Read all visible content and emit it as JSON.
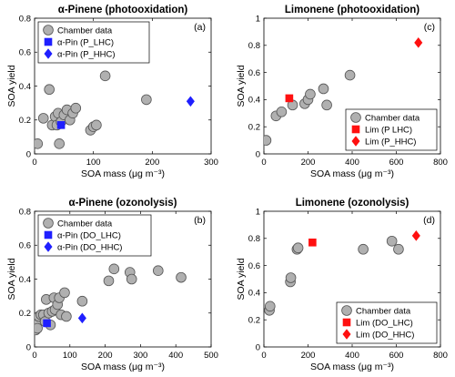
{
  "figure": {
    "symbol_colors": {
      "chamber": "#b0b0b0",
      "model": "#1f1fff",
      "lim_model": "#ff1010"
    }
  },
  "chart_data": [
    {
      "type": "scatter",
      "panel": "(a)",
      "title": "α-Pinene (photooxidation)",
      "xlabel": "SOA mass (μg m⁻³)",
      "ylabel": "SOA yield",
      "xlim": [
        0,
        300
      ],
      "ylim": [
        0,
        0.8
      ],
      "xticks": [
        0,
        100,
        200,
        300
      ],
      "yticks": [
        0,
        0.2,
        0.4,
        0.6,
        0.8
      ],
      "legend_position": "top-left",
      "series": [
        {
          "name": "Chamber data",
          "marker": "circle",
          "color": "#b0b0b0",
          "points": [
            [
              5,
              0.06
            ],
            [
              15,
              0.21
            ],
            [
              25,
              0.38
            ],
            [
              30,
              0.17
            ],
            [
              35,
              0.22
            ],
            [
              38,
              0.17
            ],
            [
              40,
              0.24
            ],
            [
              42,
              0.06
            ],
            [
              45,
              0.19
            ],
            [
              50,
              0.23
            ],
            [
              55,
              0.26
            ],
            [
              60,
              0.2
            ],
            [
              65,
              0.24
            ],
            [
              70,
              0.27
            ],
            [
              95,
              0.14
            ],
            [
              100,
              0.16
            ],
            [
              105,
              0.17
            ],
            [
              120,
              0.46
            ],
            [
              190,
              0.32
            ]
          ]
        },
        {
          "name": "α-Pin (P_LHC)",
          "marker": "square",
          "color": "#1f1fff",
          "points": [
            [
              45,
              0.17
            ]
          ]
        },
        {
          "name": "α-Pin (P_HHC)",
          "marker": "diamond",
          "color": "#1f1fff",
          "points": [
            [
              265,
              0.31
            ]
          ]
        }
      ]
    },
    {
      "type": "scatter",
      "panel": "(c)",
      "title": "Limonene (photooxidation)",
      "xlabel": "SOA mass (μg m⁻³)",
      "ylabel": "SOA yield",
      "xlim": [
        0,
        800
      ],
      "ylim": [
        0,
        1
      ],
      "xticks": [
        0,
        200,
        400,
        600,
        800
      ],
      "yticks": [
        0,
        0.2,
        0.4,
        0.6,
        0.8,
        1
      ],
      "legend_position": "bottom-right",
      "series": [
        {
          "name": "Chamber data",
          "marker": "circle",
          "color": "#b0b0b0",
          "points": [
            [
              10,
              0.1
            ],
            [
              55,
              0.28
            ],
            [
              80,
              0.31
            ],
            [
              130,
              0.36
            ],
            [
              185,
              0.37
            ],
            [
              200,
              0.4
            ],
            [
              210,
              0.44
            ],
            [
              270,
              0.48
            ],
            [
              285,
              0.36
            ],
            [
              390,
              0.58
            ]
          ]
        },
        {
          "name": "Lim (P LHC)",
          "marker": "square",
          "color": "#ff1010",
          "points": [
            [
              115,
              0.41
            ]
          ]
        },
        {
          "name": "Lim (P_HHC)",
          "marker": "diamond",
          "color": "#ff1010",
          "points": [
            [
              700,
              0.82
            ]
          ]
        }
      ]
    },
    {
      "type": "scatter",
      "panel": "(b)",
      "title": "α-Pinene (ozonolysis)",
      "xlabel": "SOA mass (μg m⁻³)",
      "ylabel": "SOA yield",
      "xlim": [
        0,
        500
      ],
      "ylim": [
        0,
        0.8
      ],
      "xticks": [
        0,
        100,
        200,
        300,
        400,
        500
      ],
      "yticks": [
        0,
        0.2,
        0.4,
        0.6,
        0.8
      ],
      "legend_position": "top-left",
      "series": [
        {
          "name": "Chamber data",
          "marker": "circle",
          "color": "#b0b0b0",
          "points": [
            [
              3,
              0.1
            ],
            [
              5,
              0.13
            ],
            [
              8,
              0.11
            ],
            [
              12,
              0.18
            ],
            [
              18,
              0.19
            ],
            [
              25,
              0.19
            ],
            [
              30,
              0.15
            ],
            [
              33,
              0.28
            ],
            [
              40,
              0.2
            ],
            [
              45,
              0.13
            ],
            [
              50,
              0.21
            ],
            [
              55,
              0.29
            ],
            [
              58,
              0.22
            ],
            [
              65,
              0.25
            ],
            [
              70,
              0.29
            ],
            [
              75,
              0.19
            ],
            [
              85,
              0.32
            ],
            [
              90,
              0.18
            ],
            [
              135,
              0.27
            ],
            [
              210,
              0.39
            ],
            [
              225,
              0.46
            ],
            [
              270,
              0.44
            ],
            [
              275,
              0.4
            ],
            [
              350,
              0.45
            ],
            [
              415,
              0.41
            ]
          ]
        },
        {
          "name": "α-Pin (DO_LHC)",
          "marker": "square",
          "color": "#1f1fff",
          "points": [
            [
              35,
              0.14
            ]
          ]
        },
        {
          "name": "α-Pin (DO_HHC)",
          "marker": "diamond",
          "color": "#1f1fff",
          "points": [
            [
              135,
              0.17
            ]
          ]
        }
      ]
    },
    {
      "type": "scatter",
      "panel": "(d)",
      "title": "Limonene (ozonolysis)",
      "xlabel": "SOA mass (μg m⁻³)",
      "ylabel": "SOA yield",
      "xlim": [
        0,
        800
      ],
      "ylim": [
        0,
        1
      ],
      "xticks": [
        0,
        200,
        400,
        600,
        800
      ],
      "yticks": [
        0,
        0.2,
        0.4,
        0.6,
        0.8,
        1
      ],
      "legend_position": "bottom-right",
      "series": [
        {
          "name": "Chamber data",
          "marker": "circle",
          "color": "#b0b0b0",
          "points": [
            [
              25,
              0.27
            ],
            [
              28,
              0.3
            ],
            [
              120,
              0.48
            ],
            [
              122,
              0.51
            ],
            [
              150,
              0.72
            ],
            [
              155,
              0.73
            ],
            [
              450,
              0.72
            ],
            [
              580,
              0.78
            ],
            [
              610,
              0.72
            ]
          ]
        },
        {
          "name": "Lim (DO_LHC)",
          "marker": "square",
          "color": "#ff1010",
          "points": [
            [
              220,
              0.77
            ]
          ]
        },
        {
          "name": "Lim (DO_HHC)",
          "marker": "diamond",
          "color": "#ff1010",
          "points": [
            [
              690,
              0.82
            ]
          ]
        }
      ]
    }
  ]
}
